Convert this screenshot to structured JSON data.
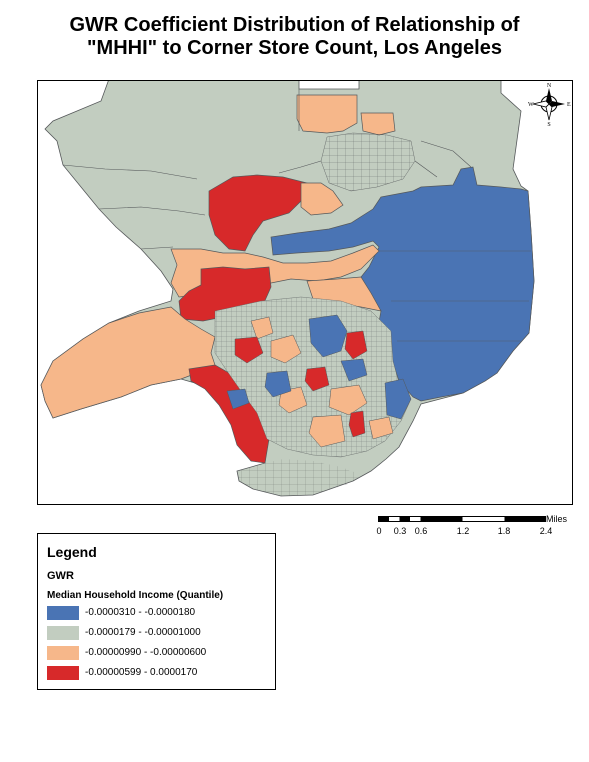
{
  "title": {
    "line1": "GWR Coefficient Distribution of Relationship of",
    "line2": "\"MHHI\" to Corner Store Count, Los Angeles"
  },
  "colors": {
    "blue": "#4a74b4",
    "gray": "#c2cdc0",
    "orange": "#f6b78a",
    "red": "#d7292a",
    "boundary": "#55585a"
  },
  "north_arrow": {
    "icon": "compass-rose-icon",
    "n": "N",
    "s": "S",
    "e": "E",
    "w": "W"
  },
  "scalebar": {
    "unit": "Miles",
    "ticks": [
      "0",
      "0.3",
      "0.6",
      "1.2",
      "1.8",
      "2.4"
    ]
  },
  "legend": {
    "title": "Legend",
    "layer": "GWR",
    "field": "Median Household Income (Quantile)",
    "classes": [
      {
        "label": "-0.0000310 - -0.0000180",
        "color": "#4a74b4"
      },
      {
        "label": "-0.0000179 - -0.00001000",
        "color": "#c2cdc0"
      },
      {
        "label": "-0.00000990 - -0.00000600",
        "color": "#f6b78a"
      },
      {
        "label": "-0.00000599 - 0.0000170",
        "color": "#d7292a"
      }
    ]
  }
}
